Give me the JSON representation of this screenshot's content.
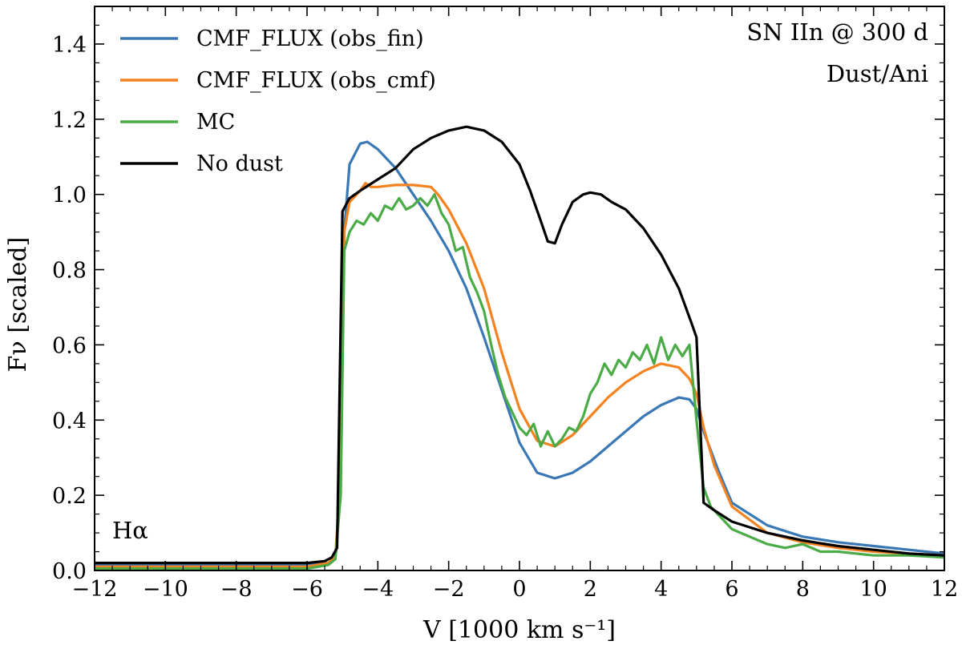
{
  "chart_data": {
    "type": "line",
    "title": "",
    "xlabel": "V [1000 km s⁻¹]",
    "ylabel": "Fν [scaled]",
    "xlim": [
      -12,
      12
    ],
    "ylim": [
      0,
      1.5
    ],
    "xticks": [
      -12,
      -10,
      -8,
      -6,
      -4,
      -2,
      0,
      2,
      4,
      6,
      8,
      10,
      12
    ],
    "xtick_labels": [
      "−12",
      "−10",
      "−8",
      "−6",
      "−4",
      "−2",
      "0",
      "2",
      "4",
      "6",
      "8",
      "10",
      "12"
    ],
    "yticks": [
      0.0,
      0.2,
      0.4,
      0.6,
      0.8,
      1.0,
      1.2,
      1.4
    ],
    "ytick_labels": [
      "0.0",
      "0.2",
      "0.4",
      "0.6",
      "0.8",
      "1.0",
      "1.2",
      "1.4"
    ],
    "legend_position": "top-left",
    "annotations": {
      "top_right_line1": "SN IIn @ 300 d",
      "top_right_line2": "Dust/Ani",
      "bottom_left": "Hα"
    },
    "series": [
      {
        "name": "CMF_FLUX (obs_fin)",
        "legend_label": "CMF_FLUX (obs_fin)",
        "color": "#3a78b5",
        "x": [
          -12,
          -6,
          -5.4,
          -5.2,
          -5.05,
          -4.95,
          -4.8,
          -4.5,
          -4.3,
          -4.0,
          -3.5,
          -3.0,
          -2.5,
          -2.0,
          -1.5,
          -1.0,
          -0.5,
          0,
          0.5,
          1.0,
          1.5,
          2.0,
          2.5,
          3.0,
          3.5,
          4.0,
          4.5,
          4.8,
          5.0,
          5.2,
          5.6,
          6,
          7,
          8,
          9,
          10,
          11,
          12
        ],
        "y": [
          0.015,
          0.015,
          0.02,
          0.035,
          0.25,
          0.9,
          1.08,
          1.135,
          1.14,
          1.12,
          1.07,
          1.0,
          0.93,
          0.85,
          0.75,
          0.62,
          0.48,
          0.34,
          0.26,
          0.245,
          0.26,
          0.29,
          0.33,
          0.37,
          0.41,
          0.44,
          0.46,
          0.455,
          0.43,
          0.37,
          0.27,
          0.18,
          0.12,
          0.09,
          0.075,
          0.065,
          0.055,
          0.045
        ]
      },
      {
        "name": "CMF_FLUX (obs_cmf)",
        "legend_label": "CMF_FLUX (obs_cmf)",
        "color": "#f5821f",
        "x": [
          -12,
          -6,
          -5.4,
          -5.2,
          -5.05,
          -4.95,
          -4.8,
          -4.5,
          -4.35,
          -4.2,
          -4.0,
          -3.5,
          -3.0,
          -2.5,
          -2.3,
          -2.0,
          -1.5,
          -1.0,
          -0.5,
          0,
          0.5,
          1.0,
          1.5,
          2.0,
          2.5,
          3.0,
          3.5,
          4.0,
          4.5,
          4.8,
          5.0,
          5.2,
          5.5,
          6,
          7,
          8,
          9,
          10,
          11,
          12
        ],
        "y": [
          0.01,
          0.01,
          0.02,
          0.035,
          0.25,
          0.9,
          0.98,
          1.01,
          1.03,
          1.02,
          1.02,
          1.025,
          1.025,
          1.02,
          1.0,
          0.96,
          0.87,
          0.75,
          0.58,
          0.43,
          0.345,
          0.33,
          0.36,
          0.41,
          0.46,
          0.5,
          0.53,
          0.55,
          0.54,
          0.51,
          0.47,
          0.38,
          0.28,
          0.17,
          0.1,
          0.075,
          0.06,
          0.05,
          0.045,
          0.04
        ]
      },
      {
        "name": "MC",
        "legend_label": "MC",
        "color": "#4aab47",
        "x": [
          -12,
          -6,
          -5.4,
          -5.2,
          -5.05,
          -4.95,
          -4.8,
          -4.6,
          -4.4,
          -4.2,
          -4.0,
          -3.8,
          -3.6,
          -3.4,
          -3.2,
          -3.0,
          -2.8,
          -2.6,
          -2.4,
          -2.2,
          -2.0,
          -1.8,
          -1.6,
          -1.4,
          -1.2,
          -1.0,
          -0.8,
          -0.6,
          -0.4,
          -0.2,
          0,
          0.2,
          0.4,
          0.6,
          0.8,
          1.0,
          1.2,
          1.4,
          1.6,
          1.8,
          2.0,
          2.2,
          2.4,
          2.6,
          2.8,
          3.0,
          3.2,
          3.4,
          3.6,
          3.8,
          4.0,
          4.2,
          4.4,
          4.6,
          4.8,
          5.0,
          5.2,
          5.4,
          5.6,
          5.8,
          6.0,
          6.5,
          7.0,
          7.5,
          8.0,
          8.5,
          9.0,
          10,
          11,
          12
        ],
        "y": [
          0.005,
          0.005,
          0.015,
          0.03,
          0.2,
          0.85,
          0.9,
          0.93,
          0.92,
          0.95,
          0.93,
          0.97,
          0.96,
          0.99,
          0.96,
          0.97,
          0.99,
          0.97,
          1.0,
          0.95,
          0.92,
          0.85,
          0.86,
          0.78,
          0.74,
          0.69,
          0.6,
          0.52,
          0.46,
          0.42,
          0.38,
          0.36,
          0.39,
          0.33,
          0.37,
          0.33,
          0.35,
          0.38,
          0.37,
          0.41,
          0.47,
          0.5,
          0.55,
          0.52,
          0.56,
          0.54,
          0.58,
          0.56,
          0.6,
          0.55,
          0.62,
          0.56,
          0.6,
          0.57,
          0.6,
          0.4,
          0.22,
          0.17,
          0.15,
          0.13,
          0.11,
          0.09,
          0.07,
          0.06,
          0.07,
          0.05,
          0.05,
          0.04,
          0.04,
          0.035
        ]
      },
      {
        "name": "No dust",
        "legend_label": "No dust",
        "color": "#000000",
        "x": [
          -12,
          -6,
          -5.5,
          -5.3,
          -5.15,
          -5.0,
          -4.8,
          -4.5,
          -4.0,
          -3.5,
          -3.0,
          -2.5,
          -2.0,
          -1.5,
          -1.0,
          -0.5,
          0,
          0.3,
          0.6,
          0.8,
          1.0,
          1.2,
          1.5,
          1.8,
          2.0,
          2.3,
          2.6,
          3.0,
          3.5,
          4.0,
          4.5,
          4.85,
          5.0,
          5.1,
          5.2,
          5.5,
          6,
          7,
          8,
          9,
          10,
          11,
          12
        ],
        "y": [
          0.02,
          0.02,
          0.025,
          0.035,
          0.06,
          0.955,
          0.99,
          1.01,
          1.04,
          1.07,
          1.12,
          1.15,
          1.17,
          1.18,
          1.17,
          1.14,
          1.08,
          1.01,
          0.93,
          0.875,
          0.87,
          0.92,
          0.98,
          1.0,
          1.005,
          1.0,
          0.98,
          0.96,
          0.91,
          0.84,
          0.75,
          0.66,
          0.62,
          0.4,
          0.18,
          0.16,
          0.13,
          0.1,
          0.08,
          0.065,
          0.055,
          0.045,
          0.04
        ]
      }
    ]
  }
}
